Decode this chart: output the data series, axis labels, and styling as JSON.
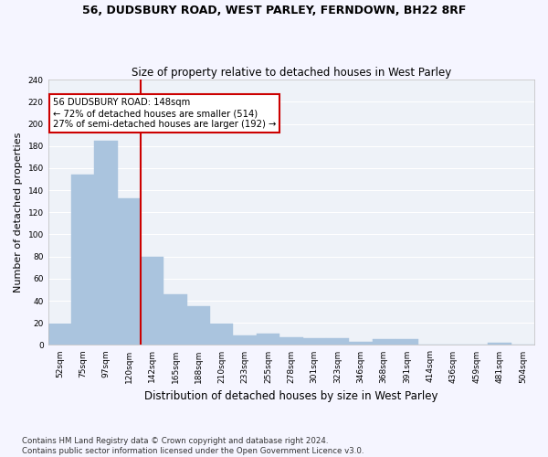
{
  "title1": "56, DUDSBURY ROAD, WEST PARLEY, FERNDOWN, BH22 8RF",
  "title2": "Size of property relative to detached houses in West Parley",
  "xlabel": "Distribution of detached houses by size in West Parley",
  "ylabel": "Number of detached properties",
  "bar_color": "#aac4de",
  "bar_edge_color": "#aac4de",
  "background_color": "#eef2f8",
  "grid_color": "#ffffff",
  "categories": [
    "52sqm",
    "75sqm",
    "97sqm",
    "120sqm",
    "142sqm",
    "165sqm",
    "188sqm",
    "210sqm",
    "233sqm",
    "255sqm",
    "278sqm",
    "301sqm",
    "323sqm",
    "346sqm",
    "368sqm",
    "391sqm",
    "414sqm",
    "436sqm",
    "459sqm",
    "481sqm",
    "504sqm"
  ],
  "values": [
    19,
    154,
    185,
    133,
    80,
    46,
    35,
    19,
    9,
    10,
    7,
    6,
    6,
    3,
    5,
    5,
    0,
    0,
    0,
    2,
    0
  ],
  "vline_x_index": 4,
  "vline_color": "#cc0000",
  "annotation_line1": "56 DUDSBURY ROAD: 148sqm",
  "annotation_line2": "← 72% of detached houses are smaller (514)",
  "annotation_line3": "27% of semi-detached houses are larger (192) →",
  "box_color": "#ffffff",
  "box_edge_color": "#cc0000",
  "ylim": [
    0,
    240
  ],
  "yticks": [
    0,
    20,
    40,
    60,
    80,
    100,
    120,
    140,
    160,
    180,
    200,
    220,
    240
  ],
  "footnote": "Contains HM Land Registry data © Crown copyright and database right 2024.\nContains public sector information licensed under the Open Government Licence v3.0.",
  "fig_facecolor": "#f5f5ff",
  "title1_fontsize": 9,
  "title2_fontsize": 8.5,
  "ylabel_fontsize": 8,
  "xlabel_fontsize": 8.5
}
